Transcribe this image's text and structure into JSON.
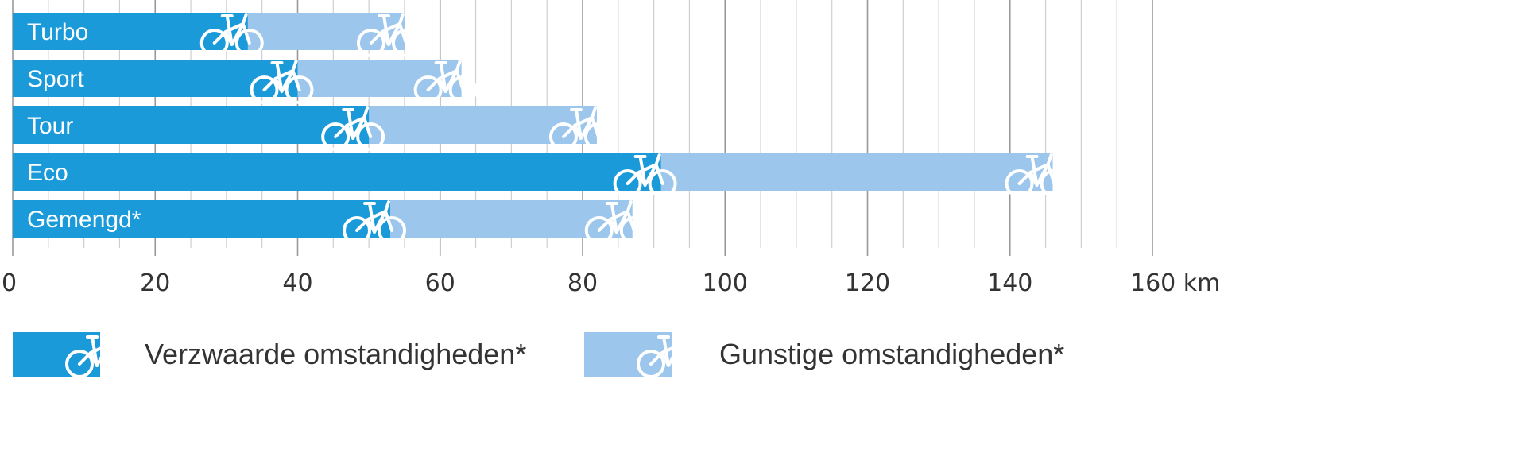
{
  "chart_data": {
    "type": "bar",
    "orientation": "horizontal",
    "stacked_overlay": true,
    "categories": [
      "Turbo",
      "Sport",
      "Tour",
      "Eco",
      "Gemengd*"
    ],
    "series": [
      {
        "name": "Verzwaarde omstandigheden*",
        "values": [
          33,
          40,
          50,
          91,
          53
        ],
        "color": "#1a9ad9"
      },
      {
        "name": "Gunstige omstandigheden*",
        "values": [
          55,
          63,
          82,
          146,
          87
        ],
        "color": "#9cc6ec"
      }
    ],
    "xlim": [
      0,
      160
    ],
    "xticks": [
      "0",
      "20",
      "40",
      "60",
      "80",
      "100",
      "120",
      "140",
      "160 km"
    ],
    "xtick_values": [
      0,
      20,
      40,
      60,
      80,
      100,
      120,
      140,
      160
    ],
    "grid": true,
    "legend": "bottom",
    "marker_icon": "bicycle-icon"
  }
}
